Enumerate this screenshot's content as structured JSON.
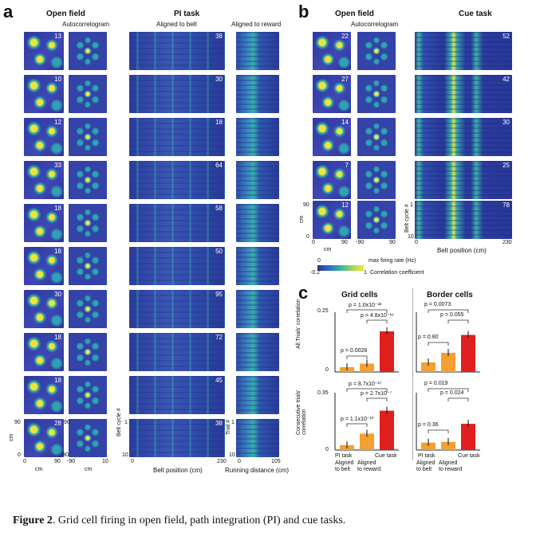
{
  "panel_a": {
    "label": "a",
    "open_field_title": "Open field",
    "autocorrelogram_title": "Autocorrelogram",
    "pi_task_title": "PI task",
    "aligned_belt_title": "Aligned to belt",
    "aligned_reward_title": "Aligned to reward",
    "rows": [
      "13",
      "10",
      "12",
      "33",
      "18",
      "18",
      "30",
      "18",
      "18",
      "28"
    ],
    "belt_rows": [
      "38",
      "30",
      "18",
      "64",
      "58",
      "50",
      "95",
      "72",
      "45",
      "38"
    ],
    "axis_cm_left_top": "90",
    "axis_cm_left_bottom": "0",
    "axis_cm_label": "cm",
    "axis_x_field": [
      "0",
      "90"
    ],
    "ac_top": "90",
    "ac_bottom": "-90",
    "ac_x": [
      "-90",
      "10"
    ],
    "belt_cycle_label": "Belt cycle #",
    "belt_cycle_ticks": [
      "1",
      "10"
    ],
    "belt_x": [
      "0",
      "230"
    ],
    "belt_xlabel": "Belt position (cm)",
    "trial_label": "Trial #",
    "trial_ticks": [
      "1",
      "10"
    ],
    "reward_x": [
      "0",
      "105"
    ],
    "reward_xlabel": "Running distance (cm)"
  },
  "panel_b": {
    "label": "b",
    "open_field_title": "Open field",
    "autocorrelogram_title": "Autocorrelogram",
    "cue_task_title": "Cue task",
    "rows": [
      "22",
      "27",
      "14",
      "7",
      "12"
    ],
    "cue_rows": [
      "52",
      "42",
      "30",
      "25",
      "78"
    ],
    "axis_top": "90",
    "axis_bottom": "0",
    "axis_label": "cm",
    "field_x": [
      "0",
      "90"
    ],
    "ac_x": [
      "-90",
      "90"
    ],
    "belt_cycle_label": "Belt cycle #",
    "belt_ticks": [
      "1",
      "10"
    ],
    "belt_x": [
      "0",
      "230"
    ],
    "belt_xlabel": "Belt position (cm)"
  },
  "legend": {
    "zero": "0",
    "rate_label": "max firing rate (Hz)",
    "neg": "-0.2",
    "one": "1",
    "corr_label": "Correlation coefficient"
  },
  "panel_c": {
    "label": "c",
    "grid_title": "Grid cells",
    "border_title": "Border cells",
    "ylabel_top": "All Trials' correlation",
    "ylabel_bottom": "Consecutive trials' correlation",
    "top_yticks": [
      "0.25",
      "0"
    ],
    "bottom_yticks": [
      "0.35",
      "0"
    ],
    "xlabels": [
      "PI task",
      "Cue task"
    ],
    "xsub": [
      "Aligned to belt",
      "Aligned to reward"
    ],
    "p_grid_top": [
      "p = 1.0x10⁻²²",
      "p = 4.8x10⁻¹⁶",
      "p = 0.0028"
    ],
    "p_border_top": [
      "p = 0.0073",
      "p = 0.055",
      "p = 0.80"
    ],
    "p_grid_bottom": [
      "p = 8.7x10⁻²⁷",
      "p = 2.7x10⁻⁷",
      "p = 1.1x10⁻¹⁰"
    ],
    "p_border_bottom": [
      "p = 0.019",
      "p = 0.024",
      "p = 0.36"
    ]
  },
  "chart_data": [
    {
      "type": "bar",
      "title": "Grid cells",
      "ylabel": "All Trials' correlation",
      "categories": [
        "PI aligned to belt",
        "PI aligned to reward",
        "Cue task"
      ],
      "values": [
        0.02,
        0.035,
        0.17
      ],
      "ylim": [
        0,
        0.25
      ],
      "colors": [
        "#f4a032",
        "#f4a032",
        "#e02020"
      ]
    },
    {
      "type": "bar",
      "title": "Border cells",
      "ylabel": "All Trials' correlation",
      "categories": [
        "PI aligned to belt",
        "PI aligned to reward",
        "Cue task"
      ],
      "values": [
        0.04,
        0.08,
        0.155
      ],
      "ylim": [
        0,
        0.25
      ],
      "colors": [
        "#f4a032",
        "#f4a032",
        "#e02020"
      ]
    },
    {
      "type": "bar",
      "title": "Grid cells",
      "ylabel": "Consecutive trials' correlation",
      "categories": [
        "PI aligned to belt",
        "PI aligned to reward",
        "Cue task"
      ],
      "values": [
        0.03,
        0.1,
        0.24
      ],
      "ylim": [
        0,
        0.35
      ],
      "colors": [
        "#f4a032",
        "#f4a032",
        "#e02020"
      ]
    },
    {
      "type": "bar",
      "title": "Border cells",
      "ylabel": "Consecutive trials' correlation",
      "categories": [
        "PI aligned to belt",
        "PI aligned to reward",
        "Cue task"
      ],
      "values": [
        0.045,
        0.05,
        0.16
      ],
      "ylim": [
        0,
        0.35
      ],
      "colors": [
        "#f4a032",
        "#f4a032",
        "#e02020"
      ]
    }
  ],
  "caption": {
    "bold": "Figure 2",
    "text": ". Grid cell firing in open field, path integration (PI) and cue tasks."
  }
}
